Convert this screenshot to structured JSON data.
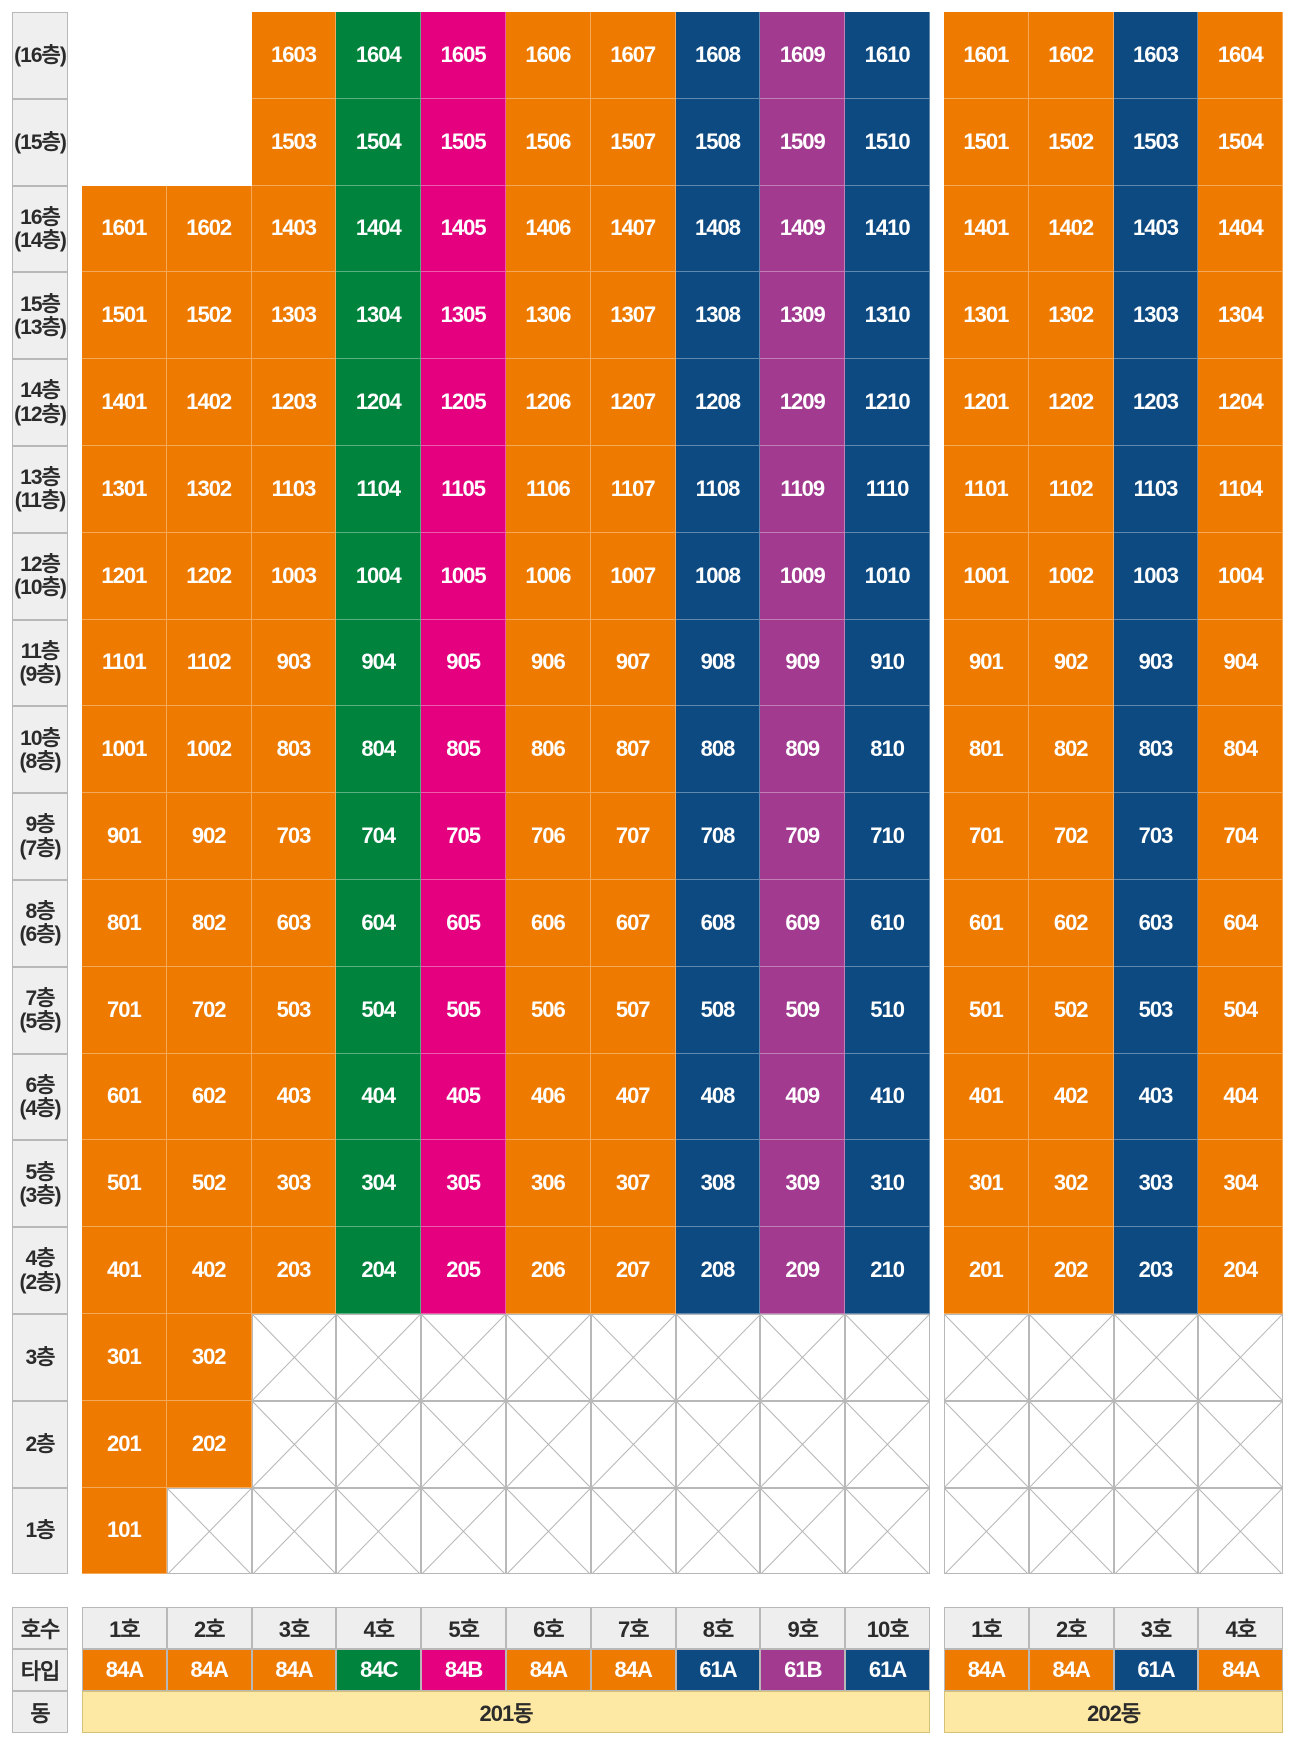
{
  "colors": {
    "84A": "#ee7b00",
    "84B": "#e4007f",
    "84C": "#00843d",
    "61A": "#0d4a82",
    "61B": "#a23a90"
  },
  "floor_labels": [
    [
      "(16층)"
    ],
    [
      "(15층)"
    ],
    [
      "16층",
      "(14층)"
    ],
    [
      "15층",
      "(13층)"
    ],
    [
      "14층",
      "(12층)"
    ],
    [
      "13층",
      "(11층)"
    ],
    [
      "12층",
      "(10층)"
    ],
    [
      "11층",
      "(9층)"
    ],
    [
      "10층",
      "(8층)"
    ],
    [
      "9층",
      "(7층)"
    ],
    [
      "8층",
      "(6층)"
    ],
    [
      "7층",
      "(5층)"
    ],
    [
      "6층",
      "(4층)"
    ],
    [
      "5층",
      "(3층)"
    ],
    [
      "4층",
      "(2층)"
    ],
    [
      "3층"
    ],
    [
      "2층"
    ],
    [
      "1층"
    ]
  ],
  "building_201": {
    "name": "201동",
    "ho_header": "호수",
    "type_header": "타입",
    "dong_header": "동",
    "ho": [
      "1호",
      "2호",
      "3호",
      "4호",
      "5호",
      "6호",
      "7호",
      "8호",
      "9호",
      "10호"
    ],
    "types": [
      "84A",
      "84A",
      "84A",
      "84C",
      "84B",
      "84A",
      "84A",
      "61A",
      "61B",
      "61A"
    ],
    "rows": [
      [
        null,
        null,
        "1603",
        "1604",
        "1605",
        "1606",
        "1607",
        "1608",
        "1609",
        "1610"
      ],
      [
        null,
        null,
        "1503",
        "1504",
        "1505",
        "1506",
        "1507",
        "1508",
        "1509",
        "1510"
      ],
      [
        "1601",
        "1602",
        "1403",
        "1404",
        "1405",
        "1406",
        "1407",
        "1408",
        "1409",
        "1410"
      ],
      [
        "1501",
        "1502",
        "1303",
        "1304",
        "1305",
        "1306",
        "1307",
        "1308",
        "1309",
        "1310"
      ],
      [
        "1401",
        "1402",
        "1203",
        "1204",
        "1205",
        "1206",
        "1207",
        "1208",
        "1209",
        "1210"
      ],
      [
        "1301",
        "1302",
        "1103",
        "1104",
        "1105",
        "1106",
        "1107",
        "1108",
        "1109",
        "1110"
      ],
      [
        "1201",
        "1202",
        "1003",
        "1004",
        "1005",
        "1006",
        "1007",
        "1008",
        "1009",
        "1010"
      ],
      [
        "1101",
        "1102",
        "903",
        "904",
        "905",
        "906",
        "907",
        "908",
        "909",
        "910"
      ],
      [
        "1001",
        "1002",
        "803",
        "804",
        "805",
        "806",
        "807",
        "808",
        "809",
        "810"
      ],
      [
        "901",
        "902",
        "703",
        "704",
        "705",
        "706",
        "707",
        "708",
        "709",
        "710"
      ],
      [
        "801",
        "802",
        "603",
        "604",
        "605",
        "606",
        "607",
        "608",
        "609",
        "610"
      ],
      [
        "701",
        "702",
        "503",
        "504",
        "505",
        "506",
        "507",
        "508",
        "509",
        "510"
      ],
      [
        "601",
        "602",
        "403",
        "404",
        "405",
        "406",
        "407",
        "408",
        "409",
        "410"
      ],
      [
        "501",
        "502",
        "303",
        "304",
        "305",
        "306",
        "307",
        "308",
        "309",
        "310"
      ],
      [
        "401",
        "402",
        "203",
        "204",
        "205",
        "206",
        "207",
        "208",
        "209",
        "210"
      ],
      [
        "301",
        "302",
        "X",
        "X",
        "X",
        "X",
        "X",
        "X",
        "X",
        "X"
      ],
      [
        "201",
        "202",
        "X",
        "X",
        "X",
        "X",
        "X",
        "X",
        "X",
        "X"
      ],
      [
        "101",
        "X",
        "X",
        "X",
        "X",
        "X",
        "X",
        "X",
        "X",
        "X"
      ]
    ]
  },
  "building_202": {
    "name": "202동",
    "ho": [
      "1호",
      "2호",
      "3호",
      "4호"
    ],
    "types": [
      "84A",
      "84A",
      "61A",
      "84A"
    ],
    "rows": [
      [
        "1601",
        "1602",
        "1603",
        "1604"
      ],
      [
        "1501",
        "1502",
        "1503",
        "1504"
      ],
      [
        "1401",
        "1402",
        "1403",
        "1404"
      ],
      [
        "1301",
        "1302",
        "1303",
        "1304"
      ],
      [
        "1201",
        "1202",
        "1203",
        "1204"
      ],
      [
        "1101",
        "1102",
        "1103",
        "1104"
      ],
      [
        "1001",
        "1002",
        "1003",
        "1004"
      ],
      [
        "901",
        "902",
        "903",
        "904"
      ],
      [
        "801",
        "802",
        "803",
        "804"
      ],
      [
        "701",
        "702",
        "703",
        "704"
      ],
      [
        "601",
        "602",
        "603",
        "604"
      ],
      [
        "501",
        "502",
        "503",
        "504"
      ],
      [
        "401",
        "402",
        "403",
        "404"
      ],
      [
        "301",
        "302",
        "303",
        "304"
      ],
      [
        "201",
        "202",
        "203",
        "204"
      ],
      [
        "X",
        "X",
        "X",
        "X"
      ],
      [
        "X",
        "X",
        "X",
        "X"
      ],
      [
        "X",
        "X",
        "X",
        "X"
      ]
    ]
  }
}
